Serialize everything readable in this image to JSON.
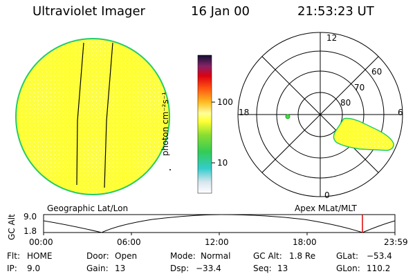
{
  "header": {
    "instrument": "Ultraviolet Imager",
    "date": "16 Jan 00",
    "time": "21:53:23 UT"
  },
  "globe": {
    "label": "Geographic Lat/Lon",
    "fill_color": "#ffff33",
    "edge_color": "#22cc66"
  },
  "colorbar": {
    "unit_label": "photon cm⁻²s⁻¹",
    "tick_high": "100",
    "tick_low": "10"
  },
  "polar": {
    "label": "Apex MLat/MLT",
    "mlt_top": "12",
    "mlt_left": "18",
    "mlt_right": "6",
    "mlt_bottom": "0",
    "lat_60": "60",
    "lat_70": "70",
    "lat_80": "80"
  },
  "altitude_plot": {
    "axis_label": "GC Alt",
    "y_top": "9.0",
    "y_bottom": "1.8",
    "x_ticks": [
      "00:00",
      "06:00",
      "12:00",
      "18:00",
      "23:59"
    ],
    "marker_color": "#dd0000"
  },
  "info": {
    "flt_label": "Flt:",
    "flt_value": "HOME",
    "ip_label": "IP:",
    "ip_value": "9.0",
    "door_label": "Door:",
    "door_value": "Open",
    "gain_label": "Gain:",
    "gain_value": "13",
    "mode_label": "Mode:",
    "mode_value": "Normal",
    "dsp_label": "Dsp:",
    "dsp_value": "−33.4",
    "gcalt_label": "GC Alt:",
    "gcalt_value": "1.8 Re",
    "seq_label": "Seq:",
    "seq_value": "13",
    "glat_label": "GLat:",
    "glat_value": "−53.4",
    "glon_label": "GLon:",
    "glon_value": "110.2"
  }
}
